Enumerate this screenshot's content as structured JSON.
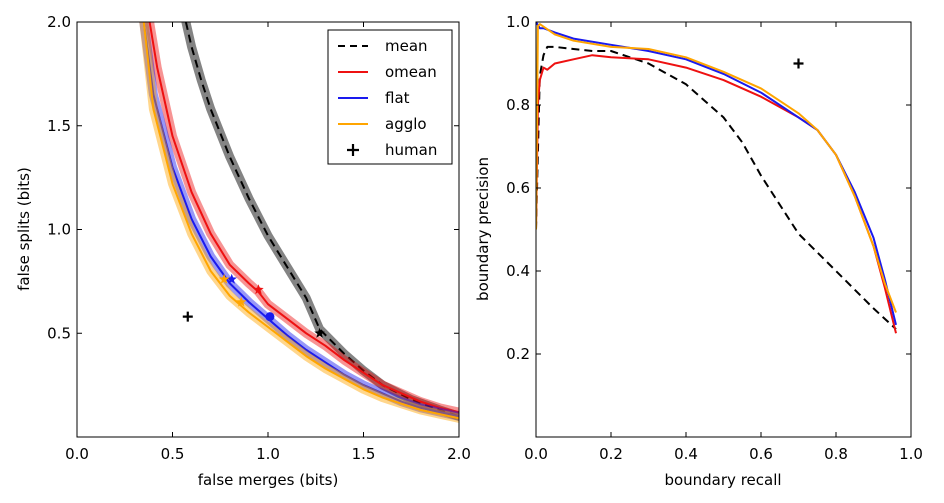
{
  "colors": {
    "mean": "#000000",
    "omean": "#ee1111",
    "flat": "#1a1aee",
    "agglo": "#ffa500",
    "human": "#000000"
  },
  "chart_data": [
    {
      "type": "line",
      "xlabel": "false merges (bits)",
      "ylabel": "false splits (bits)",
      "xlim": [
        0.0,
        2.0
      ],
      "ylim": [
        0.0,
        2.0
      ],
      "xticks": [
        "0.0",
        "0.5",
        "1.0",
        "1.5",
        "2.0"
      ],
      "yticks": [
        "0.5",
        "1.0",
        "1.5",
        "2.0"
      ],
      "ytick_values": [
        0.5,
        1.0,
        1.5,
        2.0
      ],
      "legend": {
        "placement": "top-right",
        "entries": [
          "mean",
          "omean",
          "flat",
          "agglo",
          "human"
        ]
      },
      "series": [
        {
          "name": "mean",
          "style": "dashed",
          "band": true,
          "x": [
            0.57,
            0.6,
            0.65,
            0.7,
            0.8,
            0.9,
            1.0,
            1.1,
            1.2,
            1.27,
            1.4,
            1.5,
            1.6,
            1.75,
            1.9,
            2.0
          ],
          "y": [
            2.0,
            1.88,
            1.72,
            1.58,
            1.35,
            1.15,
            0.97,
            0.82,
            0.67,
            0.52,
            0.4,
            0.32,
            0.25,
            0.18,
            0.13,
            0.1
          ]
        },
        {
          "name": "omean",
          "style": "solid",
          "band": true,
          "x": [
            0.38,
            0.42,
            0.5,
            0.6,
            0.7,
            0.8,
            0.9,
            0.95,
            1.0,
            1.1,
            1.2,
            1.3,
            1.4,
            1.5,
            1.6,
            1.7,
            1.8,
            1.9,
            2.0
          ],
          "y": [
            2.0,
            1.78,
            1.45,
            1.18,
            0.98,
            0.83,
            0.74,
            0.7,
            0.64,
            0.57,
            0.5,
            0.44,
            0.37,
            0.31,
            0.25,
            0.21,
            0.17,
            0.14,
            0.12
          ]
        },
        {
          "name": "flat",
          "style": "solid",
          "band": true,
          "x": [
            0.35,
            0.4,
            0.5,
            0.6,
            0.7,
            0.8,
            0.9,
            1.0,
            1.1,
            1.2,
            1.3,
            1.4,
            1.5,
            1.6,
            1.7,
            1.8,
            1.9,
            2.0
          ],
          "y": [
            2.0,
            1.65,
            1.3,
            1.05,
            0.87,
            0.74,
            0.65,
            0.57,
            0.49,
            0.42,
            0.36,
            0.3,
            0.25,
            0.21,
            0.17,
            0.14,
            0.12,
            0.1
          ]
        },
        {
          "name": "agglo",
          "style": "solid",
          "band": true,
          "x": [
            0.35,
            0.4,
            0.5,
            0.6,
            0.7,
            0.8,
            0.9,
            1.0,
            1.1,
            1.2,
            1.3,
            1.4,
            1.5,
            1.6,
            1.7,
            1.8,
            1.9,
            2.0
          ],
          "y": [
            2.0,
            1.58,
            1.22,
            0.98,
            0.8,
            0.68,
            0.6,
            0.53,
            0.46,
            0.39,
            0.33,
            0.28,
            0.23,
            0.19,
            0.16,
            0.13,
            0.11,
            0.09
          ]
        }
      ],
      "markers": [
        {
          "series": "mean",
          "shape": "star",
          "x": 1.27,
          "y": 0.5
        },
        {
          "series": "omean",
          "shape": "star",
          "x": 0.95,
          "y": 0.71
        },
        {
          "series": "flat",
          "shape": "star",
          "x": 0.81,
          "y": 0.76
        },
        {
          "series": "flat",
          "shape": "circle",
          "x": 1.01,
          "y": 0.58
        },
        {
          "series": "agglo",
          "shape": "star",
          "x": 0.77,
          "y": 0.76
        },
        {
          "series": "agglo",
          "shape": "star",
          "x": 0.86,
          "y": 0.65
        },
        {
          "series": "human",
          "shape": "plus",
          "x": 0.58,
          "y": 0.58
        }
      ]
    },
    {
      "type": "line",
      "xlabel": "boundary recall",
      "ylabel": "boundary precision",
      "xlim": [
        0.0,
        1.0
      ],
      "ylim": [
        0.0,
        1.0
      ],
      "xticks": [
        "0.0",
        "0.2",
        "0.4",
        "0.6",
        "0.8",
        "1.0"
      ],
      "yticks": [
        "0.2",
        "0.4",
        "0.6",
        "0.8",
        "1.0"
      ],
      "ytick_values": [
        0.2,
        0.4,
        0.6,
        0.8,
        1.0
      ],
      "series": [
        {
          "name": "mean",
          "style": "dashed",
          "x": [
            0.0,
            0.01,
            0.02,
            0.03,
            0.05,
            0.1,
            0.15,
            0.2,
            0.3,
            0.4,
            0.5,
            0.55,
            0.6,
            0.7,
            0.8,
            0.9,
            0.96
          ],
          "y": [
            0.5,
            0.87,
            0.92,
            0.94,
            0.94,
            0.935,
            0.93,
            0.93,
            0.9,
            0.85,
            0.77,
            0.71,
            0.63,
            0.49,
            0.4,
            0.31,
            0.26
          ]
        },
        {
          "name": "omean",
          "style": "solid",
          "x": [
            0.0,
            0.005,
            0.01,
            0.02,
            0.03,
            0.05,
            0.1,
            0.15,
            0.2,
            0.3,
            0.4,
            0.5,
            0.6,
            0.7,
            0.75,
            0.8,
            0.85,
            0.9,
            0.93,
            0.96
          ],
          "y": [
            0.5,
            0.8,
            0.86,
            0.89,
            0.885,
            0.9,
            0.91,
            0.92,
            0.915,
            0.91,
            0.89,
            0.86,
            0.82,
            0.77,
            0.74,
            0.68,
            0.58,
            0.46,
            0.36,
            0.25
          ]
        },
        {
          "name": "flat",
          "style": "solid",
          "x": [
            0.0,
            0.01,
            0.02,
            0.05,
            0.1,
            0.2,
            0.3,
            0.4,
            0.5,
            0.6,
            0.7,
            0.75,
            0.8,
            0.85,
            0.9,
            0.93,
            0.96
          ],
          "y": [
            1.0,
            0.985,
            0.985,
            0.975,
            0.96,
            0.945,
            0.93,
            0.91,
            0.875,
            0.83,
            0.77,
            0.74,
            0.68,
            0.59,
            0.48,
            0.38,
            0.27
          ]
        },
        {
          "name": "agglo",
          "style": "solid",
          "x": [
            0.0,
            0.005,
            0.01,
            0.05,
            0.1,
            0.2,
            0.3,
            0.4,
            0.5,
            0.6,
            0.7,
            0.75,
            0.8,
            0.85,
            0.9,
            0.93,
            0.96
          ],
          "y": [
            0.5,
            0.99,
            0.995,
            0.97,
            0.955,
            0.94,
            0.935,
            0.915,
            0.88,
            0.84,
            0.78,
            0.74,
            0.68,
            0.58,
            0.46,
            0.37,
            0.3
          ]
        }
      ],
      "markers": [
        {
          "series": "human",
          "shape": "plus",
          "x": 0.7,
          "y": 0.9
        }
      ]
    }
  ]
}
